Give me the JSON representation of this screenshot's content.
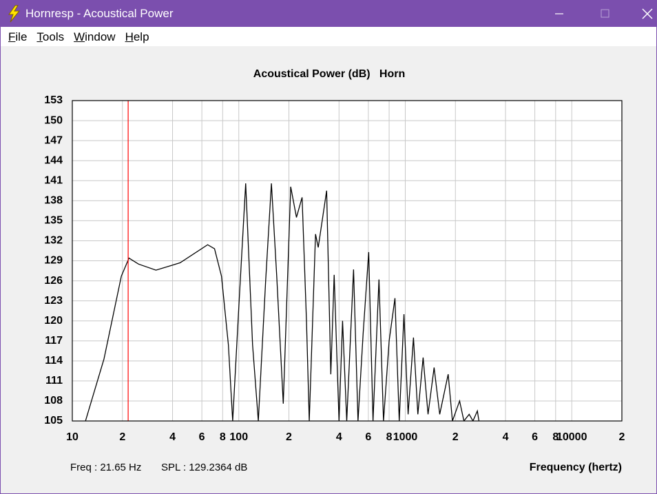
{
  "window": {
    "title": "Hornresp - Acoustical Power",
    "menu": [
      "File",
      "Tools",
      "Window",
      "Help"
    ]
  },
  "chart_data": {
    "type": "line",
    "title": "Acoustical Power (dB)   Horn",
    "xlabel": "Frequency (hertz)",
    "xscale": "log",
    "grid": true,
    "color": "#000000",
    "xlim": [
      10,
      20000
    ],
    "xticks": [
      10,
      {
        "value": 20,
        "label": "2"
      },
      {
        "value": 40,
        "label": "4"
      },
      {
        "value": 60,
        "label": "6"
      },
      {
        "value": 80,
        "label": "8"
      },
      100,
      {
        "value": 200,
        "label": "2"
      },
      {
        "value": 400,
        "label": "4"
      },
      {
        "value": 600,
        "label": "6"
      },
      {
        "value": 800,
        "label": "8"
      },
      1000,
      {
        "value": 2000,
        "label": "2"
      },
      {
        "value": 4000,
        "label": "4"
      },
      {
        "value": 6000,
        "label": "6"
      },
      {
        "value": 8000,
        "label": "8"
      },
      10000,
      {
        "value": 20000,
        "label": "2"
      }
    ],
    "ylim": [
      105,
      153
    ],
    "yticks": [
      105,
      108,
      111,
      114,
      117,
      120,
      123,
      126,
      129,
      132,
      135,
      138,
      141,
      144,
      147,
      150,
      153
    ],
    "x": [
      12,
      15.5,
      19.7,
      21.9,
      25,
      31.8,
      44.4,
      65,
      71.5,
      78.7,
      86.6,
      91.9,
      100,
      110,
      121,
      131,
      145,
      157,
      169,
      185,
      205,
      222,
      240,
      255,
      265,
      289,
      300,
      337,
      357,
      374,
      400,
      420,
      445,
      489,
      520,
      558,
      603,
      640,
      695,
      740,
      800,
      867,
      920,
      982,
      1040,
      1120,
      1190,
      1280,
      1370,
      1490,
      1610,
      1810,
      1920,
      2120,
      2250,
      2420,
      2550,
      2710,
      2770
    ],
    "values": [
      105,
      114.3,
      126.7,
      129.4,
      128.5,
      127.6,
      128.7,
      131.4,
      130.8,
      126.7,
      116.4,
      105,
      122,
      140.6,
      116.4,
      105,
      126,
      140.6,
      126.7,
      107.6,
      140.1,
      135.5,
      138.5,
      120,
      105,
      133,
      131,
      139.5,
      112,
      126.9,
      105,
      120,
      105,
      127.7,
      105,
      118,
      130.3,
      105,
      126.2,
      105,
      117,
      123.4,
      105,
      121,
      106,
      117.5,
      106,
      114.5,
      106,
      113,
      106,
      112,
      105,
      108,
      105,
      106,
      105,
      106.5,
      105
    ],
    "cursor": {
      "x": 21.65,
      "freq_label": "Freq : 21.65 Hz",
      "spl_label": "SPL : 129.2364 dB",
      "color": "#ff0000"
    }
  }
}
